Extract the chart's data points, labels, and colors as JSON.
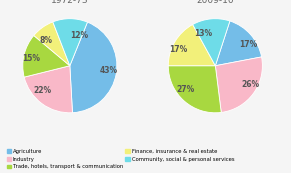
{
  "chart1_title": "1972-73",
  "chart2_title": "2009-10",
  "chart1_values": [
    43,
    22,
    15,
    8,
    12
  ],
  "chart2_values": [
    17,
    26,
    27,
    17,
    13
  ],
  "chart1_labels": [
    "43%",
    "22%",
    "15%",
    "8%",
    "12%"
  ],
  "chart2_labels": [
    "17%",
    "26%",
    "27%",
    "17%",
    "13%"
  ],
  "colors": [
    "#6ec6ea",
    "#f9b8c4",
    "#a8d e32",
    "#f0f07a",
    "#7de8e8"
  ],
  "color_agriculture": "#74bde8",
  "color_industry": "#f9b8c8",
  "color_trade": "#a8d840",
  "color_finance": "#f2f07a",
  "color_community": "#6edce8",
  "legend_labels": [
    "Agriculture",
    "Industry",
    "Trade, hotels, transport & communication",
    "Finance, insurance & real estate",
    "Community, social & personal services"
  ],
  "background_color": "#f5f5f5",
  "title_fontsize": 6.5,
  "label_fontsize": 5.5,
  "chart1_startangle": 68,
  "chart2_startangle": 72
}
